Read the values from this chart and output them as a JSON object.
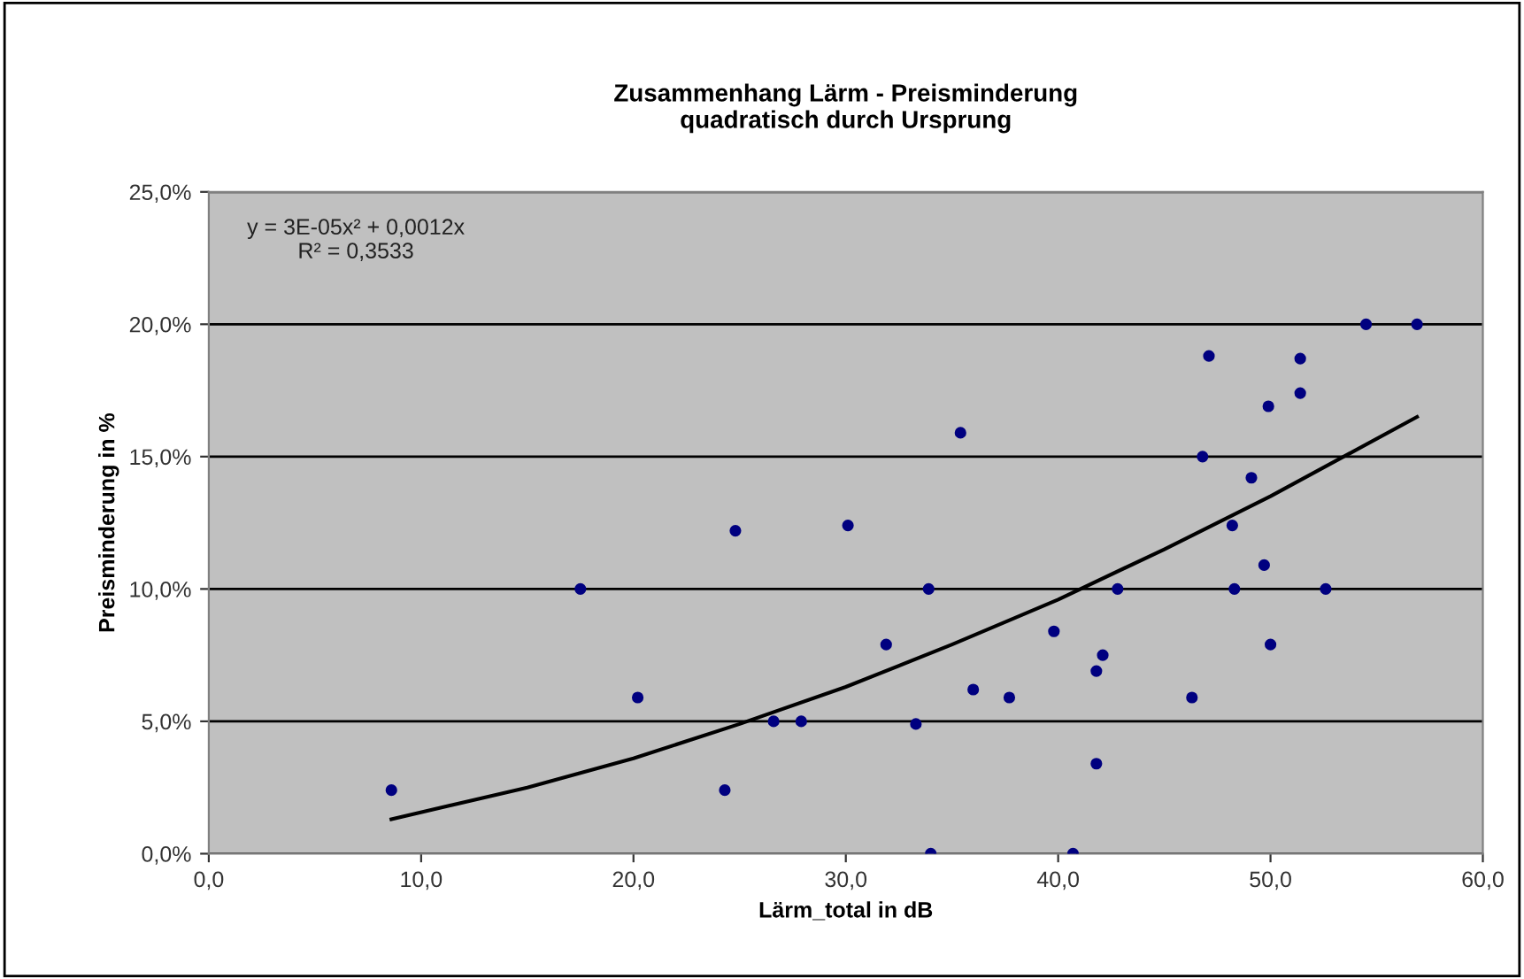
{
  "chart_data": {
    "type": "scatter",
    "title": "Zusammenhang Lärm - Preisminderung\nquadratisch durch Ursprung",
    "xlabel": "Lärm_total in dB",
    "ylabel": "Preisminderung in %",
    "annotations": [
      "y = 3E-05x² + 0,0012x\nR² = 0,3533"
    ],
    "xlim": [
      0,
      60
    ],
    "ylim": [
      0,
      25
    ],
    "xticks": [
      {
        "value": 0,
        "label": "0,0"
      },
      {
        "value": 10,
        "label": "10,0"
      },
      {
        "value": 20,
        "label": "20,0"
      },
      {
        "value": 30,
        "label": "30,0"
      },
      {
        "value": 40,
        "label": "40,0"
      },
      {
        "value": 50,
        "label": "50,0"
      },
      {
        "value": 60,
        "label": "60,0"
      }
    ],
    "yticks": [
      {
        "value": 0,
        "label": "0,0%"
      },
      {
        "value": 5,
        "label": "5,0%"
      },
      {
        "value": 10,
        "label": "10,0%"
      },
      {
        "value": 15,
        "label": "15,0%"
      },
      {
        "value": 20,
        "label": "20,0%"
      },
      {
        "value": 25,
        "label": "25,0%"
      }
    ],
    "grid": "y",
    "series": [
      {
        "marker": "circle",
        "color": "#000080",
        "x": [
          8.6,
          17.5,
          20.2,
          24.8,
          24.3,
          26.6,
          27.9,
          30.1,
          31.9,
          33.3,
          33.9,
          34.0,
          35.4,
          36.0,
          37.7,
          39.8,
          40.7,
          41.8,
          41.8,
          42.1,
          42.8,
          46.3,
          46.8,
          47.1,
          48.3,
          48.2,
          49.1,
          49.7,
          49.9,
          50.0,
          51.4,
          51.4,
          52.6,
          54.5,
          56.9
        ],
        "values": [
          2.4,
          10,
          5.9,
          12.2,
          2.4,
          5,
          5,
          12.4,
          7.9,
          4.9,
          10,
          0,
          15.9,
          6.2,
          5.9,
          8.4,
          0,
          3.4,
          6.9,
          7.5,
          10,
          5.9,
          15,
          18.8,
          10,
          12.4,
          14.2,
          10.9,
          16.9,
          7.9,
          18.7,
          17.4,
          10,
          20,
          20
        ]
      },
      {
        "type": "line",
        "color": "#000000",
        "x": [
          8.6,
          15,
          20,
          25,
          30,
          35,
          40,
          45,
          50,
          56.9
        ],
        "values": [
          1.3,
          2.5,
          3.6,
          4.9,
          6.3,
          7.9,
          9.6,
          11.5,
          13.5,
          16.5
        ]
      }
    ]
  }
}
